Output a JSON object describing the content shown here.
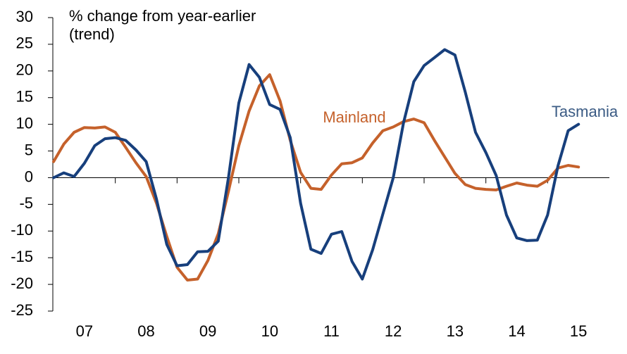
{
  "chart_data": {
    "type": "line",
    "y_label": [
      "% change from year-earlier",
      "(trend)"
    ],
    "x": [
      2007,
      2007.167,
      2007.333,
      2007.5,
      2007.667,
      2007.833,
      2008,
      2008.167,
      2008.333,
      2008.5,
      2008.667,
      2008.833,
      2009,
      2009.167,
      2009.333,
      2009.5,
      2009.667,
      2009.833,
      2010,
      2010.167,
      2010.333,
      2010.5,
      2010.667,
      2010.833,
      2011,
      2011.167,
      2011.333,
      2011.5,
      2011.667,
      2011.833,
      2012,
      2012.167,
      2012.333,
      2012.5,
      2012.667,
      2012.833,
      2013,
      2013.167,
      2013.333,
      2013.5,
      2013.667,
      2013.833,
      2014,
      2014.167,
      2014.333,
      2014.5,
      2014.667,
      2014.833,
      2015,
      2015.167,
      2015.333,
      2015.5
    ],
    "series": [
      {
        "name": "Mainland",
        "color": "#c5612b",
        "values": [
          3,
          6.3,
          8.5,
          9.4,
          9.3,
          9.5,
          8.5,
          5.7,
          2.8,
          0.2,
          -4.8,
          -11,
          -16.8,
          -19.2,
          -19,
          -15.5,
          -10.5,
          -2.5,
          6,
          12.5,
          17.2,
          19.3,
          14.4,
          7,
          1,
          -2,
          -2.2,
          0.5,
          2.6,
          2.8,
          3.7,
          6.5,
          8.8,
          9.5,
          10.5,
          11,
          10.3,
          7,
          3.9,
          0.8,
          -1.3,
          -2,
          -2.2,
          -2.3,
          -1.6,
          -1,
          -1.4,
          -1.6,
          -0.5,
          1.8,
          2.3,
          2
        ]
      },
      {
        "name": "Tasmania",
        "color": "#173f7c",
        "values": [
          0,
          0.9,
          0.2,
          2.7,
          6,
          7.3,
          7.5,
          7,
          5.2,
          3,
          -4,
          -12.5,
          -16.5,
          -16.3,
          -13.9,
          -13.8,
          -11.9,
          0.1,
          14,
          21.2,
          18.8,
          13.7,
          12.8,
          7.5,
          -4.8,
          -13.4,
          -14.2,
          -10.6,
          -10.1,
          -15.7,
          -19,
          -13.5,
          -6.8,
          0,
          10.3,
          18,
          21,
          22.5,
          24,
          23,
          16,
          8.5,
          4.7,
          0.4,
          -7,
          -11.3,
          -11.8,
          -11.7,
          -7,
          2.2,
          8.8,
          10
        ]
      }
    ],
    "xlim": [
      2007,
      2016
    ],
    "xticks": [
      {
        "value": 2007,
        "label": "07"
      },
      {
        "value": 2008,
        "label": "08"
      },
      {
        "value": 2009,
        "label": "09"
      },
      {
        "value": 2010,
        "label": "10"
      },
      {
        "value": 2011,
        "label": "11"
      },
      {
        "value": 2012,
        "label": "12"
      },
      {
        "value": 2013,
        "label": "13"
      },
      {
        "value": 2014,
        "label": "14"
      },
      {
        "value": 2015,
        "label": "15"
      }
    ],
    "ylim": [
      -25,
      30
    ],
    "yticks": [
      -25,
      -20,
      -15,
      -10,
      -5,
      0,
      5,
      10,
      15,
      20,
      25,
      30
    ],
    "grid": false
  }
}
